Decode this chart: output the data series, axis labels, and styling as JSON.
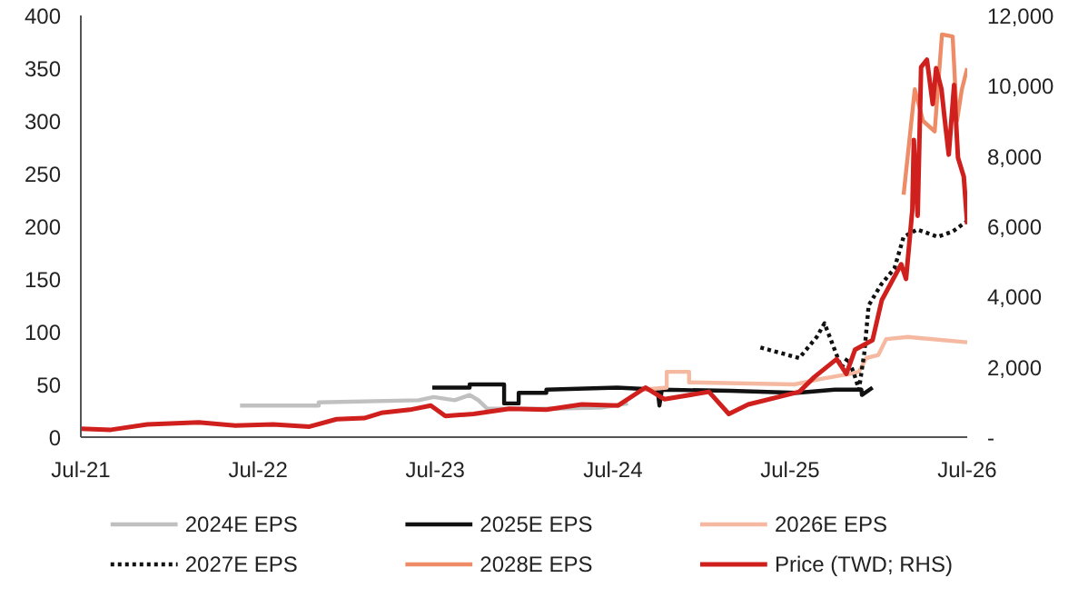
{
  "chart_data": {
    "type": "line",
    "xlim": [
      "2021-07-01",
      "2026-07-01"
    ],
    "xticks": [
      {
        "value": "2021-07-01",
        "label": "Jul-21"
      },
      {
        "value": "2022-07-01",
        "label": "Jul-22"
      },
      {
        "value": "2023-07-01",
        "label": "Jul-23"
      },
      {
        "value": "2024-07-01",
        "label": "Jul-24"
      },
      {
        "value": "2025-07-01",
        "label": "Jul-25"
      },
      {
        "value": "2026-07-01",
        "label": "Jul-26"
      }
    ],
    "ylim": [
      0,
      400
    ],
    "yticks": [
      0,
      50,
      100,
      150,
      200,
      250,
      300,
      350,
      400
    ],
    "y2lim": [
      0,
      12000
    ],
    "y2ticks": [
      {
        "value": 0,
        "label": "-"
      },
      {
        "value": 2000,
        "label": "2,000"
      },
      {
        "value": 4000,
        "label": "4,000"
      },
      {
        "value": 6000,
        "label": "6,000"
      },
      {
        "value": 8000,
        "label": "8,000"
      },
      {
        "value": 10000,
        "label": "10,000"
      },
      {
        "value": 12000,
        "label": "12,000"
      }
    ],
    "grid": false,
    "legend": "bottom",
    "series": [
      {
        "name": "2024E EPS",
        "color": "#c0c0c0",
        "x": [
          "2022-05-25",
          "2022-11-03",
          "2022-11-03",
          "2023-05-28",
          "2023-06-28",
          "2023-08-10",
          "2023-09-10",
          "2023-09-28",
          "2023-10-16",
          "2024-02-15",
          "2024-06-06",
          "2024-08-01"
        ],
        "values": [
          30,
          30,
          33,
          35,
          38,
          35,
          40,
          35,
          27,
          27,
          28,
          32
        ]
      },
      {
        "name": "2025E EPS",
        "color": "#111111",
        "x": [
          "2023-06-25",
          "2023-09-10",
          "2023-09-10",
          "2023-11-20",
          "2023-11-20",
          "2023-12-20",
          "2023-12-20",
          "2024-02-15",
          "2024-02-15",
          "2024-07-10",
          "2024-10-01",
          "2024-10-05",
          "2024-10-10",
          "2025-03-01",
          "2025-07-15",
          "2025-10-01",
          "2025-11-25",
          "2025-11-26",
          "2025-12-18"
        ],
        "values": [
          47,
          47,
          50,
          50,
          32,
          32,
          42,
          42,
          45,
          47,
          45,
          30,
          45,
          44,
          42,
          45,
          45,
          40,
          47
        ]
      },
      {
        "name": "2026E EPS",
        "color": "#f5b9a1",
        "x": [
          "2024-09-01",
          "2024-10-20",
          "2024-10-20",
          "2024-12-05",
          "2024-12-05",
          "2025-07-10",
          "2025-09-01",
          "2025-11-01",
          "2025-11-20",
          "2025-12-05",
          "2025-12-30",
          "2026-01-15",
          "2026-03-01",
          "2026-07-01"
        ],
        "values": [
          45,
          47,
          62,
          62,
          52,
          50,
          55,
          60,
          62,
          75,
          78,
          93,
          95,
          90
        ]
      },
      {
        "name": "2027E EPS",
        "color": "#111111",
        "line_style": "dotted",
        "x": [
          "2025-05-01",
          "2025-07-20",
          "2025-08-25",
          "2025-09-10",
          "2025-09-25",
          "2025-10-15",
          "2025-10-28",
          "2025-11-10",
          "2025-11-20",
          "2025-12-01",
          "2025-12-10",
          "2026-01-05",
          "2026-02-01",
          "2026-02-20",
          "2026-03-20",
          "2026-05-01",
          "2026-06-01",
          "2026-07-01"
        ],
        "values": [
          85,
          75,
          95,
          108,
          90,
          66,
          75,
          60,
          45,
          80,
          125,
          145,
          160,
          190,
          197,
          190,
          195,
          205
        ]
      },
      {
        "name": "2028E EPS",
        "color": "#ef8c68",
        "x": [
          "2026-02-20",
          "2026-03-15",
          "2026-04-01",
          "2026-04-25",
          "2026-05-10",
          "2026-06-01",
          "2026-06-10",
          "2026-06-20",
          "2026-07-01"
        ],
        "values": [
          230,
          330,
          300,
          290,
          382,
          380,
          300,
          330,
          350
        ]
      },
      {
        "name": "Price (TWD; RHS)",
        "color": "#d0201e",
        "axis": "y2",
        "x": [
          "2021-07-01",
          "2021-09-01",
          "2021-11-15",
          "2022-03-01",
          "2022-05-15",
          "2022-08-01",
          "2022-10-15",
          "2022-12-10",
          "2023-02-05",
          "2023-03-12",
          "2023-05-10",
          "2023-06-22",
          "2023-07-22",
          "2023-09-18",
          "2023-12-01",
          "2024-02-15",
          "2024-04-28",
          "2024-07-12",
          "2024-09-06",
          "2024-10-15",
          "2025-01-15",
          "2025-02-25",
          "2025-04-06",
          "2025-07-20",
          "2025-08-20",
          "2025-10-05",
          "2025-10-25",
          "2025-11-12",
          "2025-12-18",
          "2026-01-06",
          "2026-02-15",
          "2026-02-25",
          "2026-03-10",
          "2026-03-13",
          "2026-03-21",
          "2026-03-28",
          "2026-04-09",
          "2026-04-21",
          "2026-04-28",
          "2026-05-09",
          "2026-05-16",
          "2026-05-24",
          "2026-06-04",
          "2026-06-12",
          "2026-06-24",
          "2026-07-01"
        ],
        "values": [
          240,
          210,
          360,
          420,
          330,
          360,
          300,
          510,
          540,
          690,
          780,
          900,
          600,
          660,
          810,
          780,
          930,
          900,
          1410,
          1080,
          1290,
          660,
          930,
          1290,
          1710,
          2220,
          1800,
          2490,
          2760,
          3900,
          4920,
          4500,
          6480,
          8460,
          6300,
          10530,
          10740,
          9480,
          10500,
          9900,
          9000,
          8040,
          10020,
          7950,
          7410,
          6060
        ]
      }
    ]
  }
}
